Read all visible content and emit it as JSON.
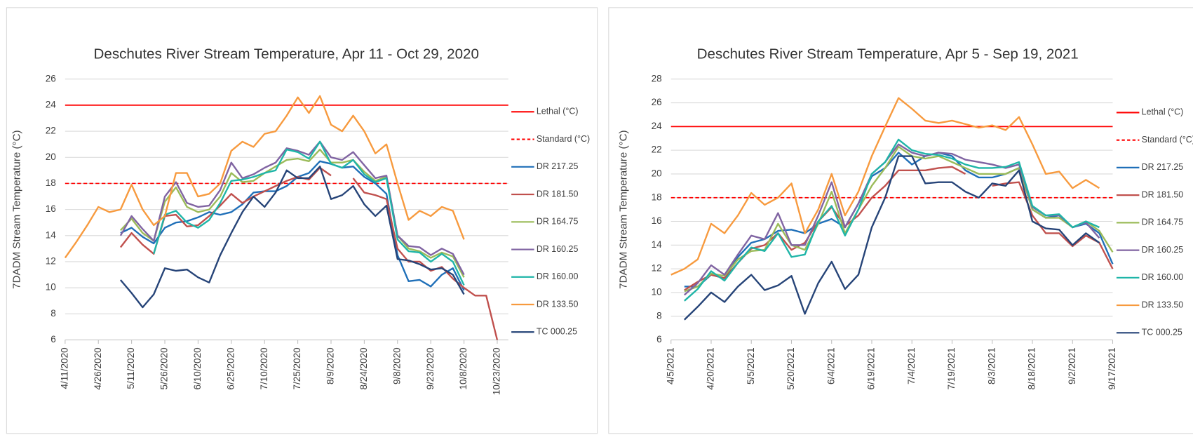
{
  "chart_data": [
    {
      "type": "line",
      "title": "Deschutes River Stream Temperature, Apr 11 - Oct 29, 2020",
      "ylabel": "7DADM Stream Temperature (°C)",
      "x": [
        "4/11/2020",
        "4/16/2020",
        "4/21/2020",
        "4/26/2020",
        "5/1/2020",
        "5/6/2020",
        "5/11/2020",
        "5/16/2020",
        "5/21/2020",
        "5/26/2020",
        "5/31/2020",
        "6/5/2020",
        "6/10/2020",
        "6/15/2020",
        "6/20/2020",
        "6/25/2020",
        "6/30/2020",
        "7/5/2020",
        "7/10/2020",
        "7/15/2020",
        "7/20/2020",
        "7/25/2020",
        "7/30/2020",
        "8/4/2020",
        "8/9/2020",
        "8/14/2020",
        "8/19/2020",
        "8/24/2020",
        "8/29/2020",
        "9/3/2020",
        "9/8/2020",
        "9/13/2020",
        "9/18/2020",
        "9/23/2020",
        "9/28/2020",
        "10/3/2020",
        "10/8/2020",
        "10/13/2020",
        "10/18/2020",
        "10/23/2020",
        "10/28/2020"
      ],
      "xlim": [
        "4/11/2020",
        "10/28/2020"
      ],
      "xticks": [
        "4/11/2020",
        "4/26/2020",
        "5/11/2020",
        "5/26/2020",
        "6/10/2020",
        "6/25/2020",
        "7/10/2020",
        "7/25/2020",
        "8/9/2020",
        "8/24/2020",
        "9/8/2020",
        "9/23/2020",
        "10/8/2020",
        "10/23/2020"
      ],
      "ylim": [
        6,
        26
      ],
      "yticks": [
        6,
        8,
        10,
        12,
        14,
        16,
        18,
        20,
        22,
        24,
        26
      ],
      "grid": true,
      "hlines": [
        {
          "name": "Lethal (°C)",
          "value": 24,
          "color": "#ff0000",
          "dash": false
        },
        {
          "name": "Standard (°C)",
          "value": 18,
          "color": "#ff0000",
          "dash": true
        }
      ],
      "series": [
        {
          "name": "DR 217.25",
          "color": "#1f6fb8",
          "values": [
            null,
            null,
            null,
            null,
            null,
            14.2,
            14.6,
            13.9,
            13.4,
            14.6,
            15.0,
            15.1,
            15.4,
            15.8,
            15.6,
            15.8,
            16.4,
            17.3,
            17.4,
            17.4,
            17.8,
            18.5,
            18.8,
            19.7,
            19.5,
            19.2,
            19.3,
            18.5,
            18.0,
            17.2,
            12.5,
            10.5,
            10.6,
            10.1,
            11.0,
            11.5,
            9.8,
            null,
            null,
            null,
            null
          ]
        },
        {
          "name": "DR 181.50",
          "color": "#c0504d",
          "values": [
            null,
            null,
            null,
            null,
            null,
            13.1,
            14.2,
            13.3,
            12.6,
            15.5,
            15.6,
            14.7,
            14.8,
            15.5,
            16.3,
            17.2,
            16.5,
            17.0,
            17.4,
            17.8,
            18.2,
            18.5,
            18.3,
            19.2,
            18.6,
            null,
            18.4,
            17.3,
            17.1,
            16.8,
            13.0,
            12.0,
            12.0,
            11.3,
            11.6,
            10.7,
            10.0,
            9.4,
            9.4,
            6.0,
            null
          ]
        },
        {
          "name": "DR 164.75",
          "color": "#9bbb59",
          "values": [
            null,
            null,
            null,
            null,
            null,
            14.4,
            15.3,
            14.2,
            13.6,
            16.6,
            17.7,
            16.2,
            15.8,
            16.0,
            17.0,
            18.8,
            18.1,
            18.2,
            18.8,
            19.3,
            19.8,
            19.9,
            19.7,
            20.6,
            19.6,
            19.6,
            19.8,
            18.9,
            18.2,
            18.5,
            14.0,
            13.0,
            12.8,
            12.3,
            12.7,
            12.4,
            10.8,
            null,
            null,
            null,
            null
          ]
        },
        {
          "name": "DR 160.25",
          "color": "#8064a2",
          "values": [
            null,
            null,
            null,
            null,
            null,
            14.0,
            15.5,
            14.5,
            13.6,
            17.0,
            18.1,
            16.5,
            16.2,
            16.3,
            17.5,
            19.6,
            18.4,
            18.7,
            19.2,
            19.6,
            20.7,
            20.5,
            20.2,
            21.2,
            20.0,
            19.8,
            20.4,
            19.4,
            18.4,
            18.6,
            14.0,
            13.2,
            13.1,
            12.5,
            13.0,
            12.6,
            11.0,
            null,
            null,
            null,
            null
          ]
        },
        {
          "name": "DR 160.00",
          "color": "#1fb5a8",
          "values": [
            null,
            null,
            null,
            null,
            null,
            null,
            null,
            null,
            12.6,
            15.6,
            15.9,
            15.0,
            14.6,
            15.2,
            16.5,
            18.2,
            18.3,
            18.5,
            18.8,
            19.0,
            20.6,
            20.4,
            19.9,
            21.2,
            19.5,
            19.2,
            19.8,
            18.7,
            18.1,
            18.4,
            13.7,
            12.8,
            12.7,
            12.0,
            12.6,
            12.0,
            10.2,
            null,
            null,
            null,
            null
          ]
        },
        {
          "name": "DR 133.50",
          "color": "#f79a3e",
          "values": [
            12.3,
            13.5,
            14.8,
            16.2,
            15.8,
            16.0,
            17.9,
            16.0,
            14.8,
            15.5,
            18.8,
            18.8,
            17.0,
            17.2,
            18.0,
            20.5,
            21.2,
            20.8,
            21.8,
            22.0,
            23.2,
            24.6,
            23.4,
            24.7,
            22.5,
            22.0,
            23.2,
            22.0,
            20.3,
            21.0,
            18.0,
            15.2,
            15.9,
            15.5,
            16.2,
            15.9,
            13.7,
            null,
            null,
            null,
            null
          ]
        },
        {
          "name": "TC 000.25",
          "color": "#264478",
          "values": [
            null,
            null,
            null,
            null,
            null,
            10.6,
            9.6,
            8.5,
            9.5,
            11.5,
            11.3,
            11.4,
            10.8,
            10.4,
            12.5,
            14.2,
            15.8,
            17.0,
            16.2,
            17.3,
            19.0,
            18.4,
            18.4,
            19.3,
            16.8,
            17.1,
            17.8,
            16.4,
            15.5,
            16.3,
            12.2,
            12.1,
            11.8,
            11.4,
            11.5,
            11.0,
            9.5,
            null,
            null,
            null,
            null
          ]
        }
      ]
    },
    {
      "type": "line",
      "title": "Deschutes River Stream Temperature, Apr 5 - Sep 19, 2021",
      "ylabel": "7DADM Stream Temperature (°C)",
      "x": [
        "4/5/2021",
        "4/10/2021",
        "4/15/2021",
        "4/20/2021",
        "4/25/2021",
        "4/30/2021",
        "5/5/2021",
        "5/10/2021",
        "5/15/2021",
        "5/20/2021",
        "5/25/2021",
        "5/30/2021",
        "6/4/2021",
        "6/9/2021",
        "6/14/2021",
        "6/19/2021",
        "6/24/2021",
        "6/29/2021",
        "7/4/2021",
        "7/9/2021",
        "7/14/2021",
        "7/19/2021",
        "7/24/2021",
        "7/29/2021",
        "8/3/2021",
        "8/8/2021",
        "8/13/2021",
        "8/18/2021",
        "8/23/2021",
        "8/28/2021",
        "9/2/2021",
        "9/7/2021",
        "9/12/2021",
        "9/17/2021"
      ],
      "xlim": [
        "4/5/2021",
        "9/17/2021"
      ],
      "xticks": [
        "4/5/2021",
        "4/20/2021",
        "5/5/2021",
        "5/20/2021",
        "6/4/2021",
        "6/19/2021",
        "7/4/2021",
        "7/19/2021",
        "8/3/2021",
        "8/18/2021",
        "9/2/2021",
        "9/17/2021"
      ],
      "ylim": [
        6,
        28
      ],
      "yticks": [
        6,
        8,
        10,
        12,
        14,
        16,
        18,
        20,
        22,
        24,
        26,
        28
      ],
      "grid": true,
      "hlines": [
        {
          "name": "Lethal (°C)",
          "value": 24,
          "color": "#ff0000",
          "dash": false
        },
        {
          "name": "Standard (°C)",
          "value": 18,
          "color": "#ff0000",
          "dash": true
        }
      ],
      "series": [
        {
          "name": "DR 217.25",
          "color": "#1f6fb8",
          "values": [
            null,
            10.5,
            10.5,
            11.5,
            11.2,
            13.0,
            14.2,
            14.5,
            15.2,
            15.3,
            15.0,
            15.8,
            16.2,
            15.5,
            17.5,
            19.8,
            20.5,
            21.8,
            20.8,
            21.5,
            21.8,
            21.5,
            20.3,
            19.7,
            19.7,
            20.0,
            20.5,
            17.0,
            16.3,
            16.5,
            15.5,
            15.8,
            15.0,
            12.4
          ]
        },
        {
          "name": "DR 181.50",
          "color": "#c0504d",
          "values": [
            null,
            10.2,
            10.9,
            11.5,
            11.2,
            12.5,
            13.7,
            14.0,
            15.0,
            13.6,
            14.2,
            16.0,
            17.2,
            15.6,
            16.5,
            18.0,
            19.0,
            20.3,
            20.3,
            20.3,
            20.5,
            20.6,
            20.0,
            null,
            19.0,
            19.2,
            19.3,
            16.5,
            15.0,
            15.0,
            13.9,
            14.8,
            14.2,
            12.0
          ]
        },
        {
          "name": "DR 164.75",
          "color": "#9bbb59",
          "values": [
            null,
            10.1,
            10.5,
            11.6,
            11.4,
            12.8,
            13.5,
            13.6,
            15.8,
            14.0,
            13.6,
            15.8,
            18.5,
            15.0,
            17.0,
            19.0,
            20.5,
            22.3,
            21.5,
            21.3,
            21.5,
            21.0,
            20.5,
            20.0,
            20.0,
            20.0,
            20.5,
            17.0,
            16.3,
            16.3,
            15.5,
            16.0,
            15.2,
            13.4
          ]
        },
        {
          "name": "DR 160.25",
          "color": "#8064a2",
          "values": [
            null,
            9.8,
            10.8,
            12.3,
            11.5,
            13.2,
            14.8,
            14.5,
            16.7,
            14.0,
            14.0,
            16.5,
            19.3,
            15.5,
            17.5,
            20.0,
            21.0,
            22.5,
            21.8,
            21.5,
            21.8,
            21.7,
            21.2,
            21.0,
            20.8,
            20.5,
            20.8,
            17.2,
            16.5,
            16.5,
            15.5,
            15.9,
            14.6,
            null
          ]
        },
        {
          "name": "DR 160.00",
          "color": "#1fb5a8",
          "values": [
            null,
            9.3,
            10.3,
            11.8,
            11.0,
            12.5,
            13.8,
            13.5,
            15.0,
            13.0,
            13.2,
            16.0,
            17.3,
            14.8,
            17.0,
            20.0,
            21.0,
            22.9,
            22.0,
            21.7,
            21.6,
            21.3,
            20.8,
            20.5,
            20.5,
            20.6,
            21.0,
            17.3,
            16.5,
            16.6,
            15.5,
            16.0,
            15.5,
            null
          ]
        },
        {
          "name": "DR 133.50",
          "color": "#f79a3e",
          "values": [
            11.5,
            12.0,
            12.8,
            15.8,
            15.0,
            16.5,
            18.4,
            17.4,
            18.0,
            19.2,
            15.0,
            17.0,
            20.0,
            16.5,
            18.5,
            21.5,
            24.0,
            26.4,
            25.5,
            24.5,
            24.3,
            24.5,
            24.2,
            23.9,
            24.1,
            23.7,
            24.8,
            22.5,
            20.0,
            20.2,
            18.8,
            19.5,
            18.8,
            null
          ]
        },
        {
          "name": "TC 000.25",
          "color": "#264478",
          "values": [
            null,
            7.7,
            8.8,
            10.0,
            9.2,
            10.5,
            11.5,
            10.2,
            10.6,
            11.4,
            8.2,
            10.8,
            12.6,
            10.3,
            11.5,
            15.5,
            18.0,
            21.5,
            21.5,
            19.2,
            19.3,
            19.3,
            18.5,
            18.0,
            19.2,
            19.0,
            20.3,
            16.0,
            15.4,
            15.3,
            14.0,
            15.0,
            14.2,
            null
          ]
        }
      ]
    }
  ]
}
